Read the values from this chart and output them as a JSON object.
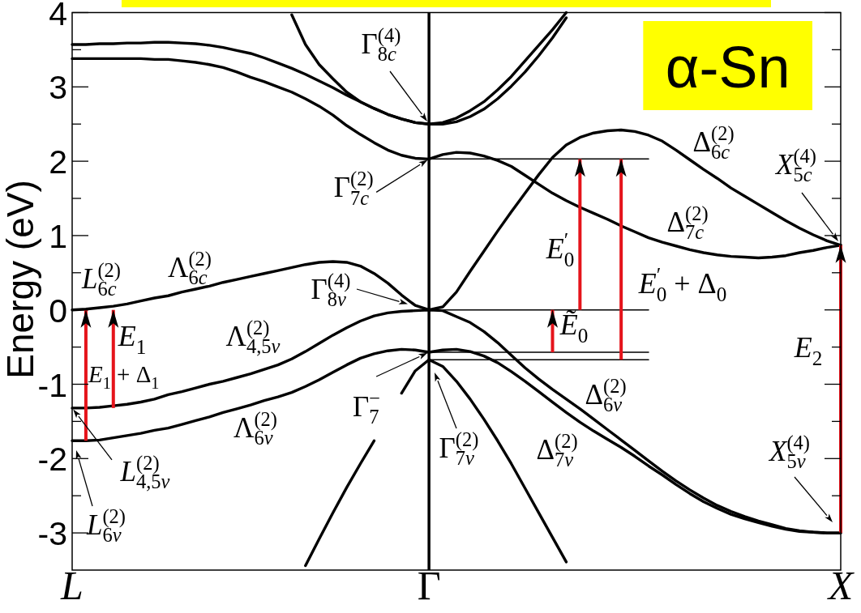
{
  "chart_data": {
    "type": "line",
    "title": "α-Sn",
    "ylabel": "Energy (eV)",
    "categories": [
      "L",
      null,
      null,
      null,
      null,
      null,
      null,
      null,
      null,
      null,
      null,
      null,
      null,
      null,
      null,
      null,
      null,
      null,
      null,
      null,
      null,
      null,
      null,
      null,
      null,
      null,
      "Γ",
      null,
      null,
      null,
      null,
      null,
      null,
      null,
      null,
      null,
      null,
      null,
      null,
      null,
      null,
      null,
      null,
      null,
      null,
      null,
      null,
      null,
      null,
      null,
      null,
      null,
      null,
      null,
      null,
      null,
      "X"
    ],
    "ylim": [
      -3.5,
      4
    ],
    "yticks": [
      -3,
      {
        "value": -2.5,
        "label": null
      },
      -2,
      {
        "value": -1.5,
        "label": null
      },
      -1,
      {
        "value": -0.5,
        "label": null
      },
      0,
      {
        "value": 0.5,
        "label": null
      },
      1,
      {
        "value": 1.5,
        "label": null
      },
      2,
      {
        "value": 2.5,
        "label": null
      },
      3,
      {
        "value": 3.5,
        "label": null
      },
      4
    ],
    "series": [
      {
        "color": "#000000",
        "values": [
          3.57,
          3.57,
          3.58,
          3.58,
          3.59,
          3.59,
          3.6,
          3.6,
          3.59,
          3.58,
          3.56,
          3.53,
          3.49,
          3.45,
          3.39,
          3.32,
          3.25,
          3.17,
          3.08,
          2.99,
          2.89,
          2.8,
          2.71,
          2.63,
          2.57,
          2.52,
          2.5,
          2.5,
          2.53,
          2.6,
          2.7,
          2.84,
          3.01,
          3.2,
          3.42,
          3.66,
          3.93,
          null,
          null,
          null,
          null,
          null,
          null,
          null,
          null,
          null,
          null,
          null,
          null,
          null,
          null,
          null,
          null,
          null,
          null,
          null,
          null
        ]
      },
      {
        "color": "#000000",
        "values": [
          null,
          null,
          null,
          null,
          null,
          null,
          null,
          null,
          null,
          null,
          null,
          null,
          null,
          null,
          null,
          null,
          3.97,
          3.57,
          3.3,
          3.11,
          2.93,
          2.8,
          2.71,
          2.63,
          2.57,
          2.52,
          2.5,
          2.52,
          2.58,
          2.68,
          2.8,
          2.96,
          3.14,
          3.35,
          3.56,
          3.77,
          4.0,
          null,
          null,
          null,
          null,
          null,
          null,
          null,
          null,
          null,
          null,
          null,
          null,
          null,
          null,
          null,
          null,
          null,
          null,
          null,
          null
        ]
      },
      {
        "color": "#000000",
        "values": [
          3.38,
          3.38,
          3.38,
          3.38,
          3.38,
          3.38,
          3.37,
          3.37,
          3.35,
          3.33,
          3.3,
          3.26,
          3.2,
          3.13,
          3.07,
          3.0,
          2.93,
          2.84,
          2.74,
          2.62,
          2.48,
          2.36,
          2.25,
          2.15,
          2.08,
          2.04,
          2.03,
          2.09,
          2.12,
          2.11,
          2.07,
          2.01,
          1.93,
          1.81,
          1.69,
          1.57,
          1.47,
          1.38,
          1.3,
          1.22,
          1.13,
          1.05,
          0.97,
          0.91,
          0.86,
          0.81,
          0.77,
          0.74,
          0.72,
          0.71,
          0.7,
          0.71,
          0.73,
          0.77,
          0.8,
          0.84,
          0.87
        ]
      },
      {
        "color": "#000000",
        "values": [
          0,
          0.01,
          0.03,
          0.05,
          0.08,
          0.12,
          0.16,
          0.19,
          0.24,
          0.28,
          0.32,
          0.37,
          0.41,
          0.45,
          0.49,
          0.53,
          0.57,
          0.61,
          0.64,
          0.65,
          0.64,
          0.59,
          0.49,
          0.36,
          0.2,
          0.06,
          0,
          0.04,
          0.24,
          0.52,
          0.79,
          1.06,
          1.32,
          1.57,
          1.82,
          2.05,
          2.22,
          2.32,
          2.38,
          2.41,
          2.42,
          2.4,
          2.35,
          2.27,
          2.15,
          2.02,
          1.89,
          1.77,
          1.64,
          1.53,
          1.42,
          1.31,
          1.2,
          1.1,
          1.01,
          0.93,
          0.87
        ]
      },
      {
        "color": "#000000",
        "values": [
          -1.32,
          -1.32,
          -1.31,
          -1.29,
          -1.27,
          -1.24,
          -1.2,
          -1.14,
          -1.1,
          -1.05,
          -1.0,
          -0.96,
          -0.91,
          -0.86,
          -0.8,
          -0.74,
          -0.66,
          -0.56,
          -0.45,
          -0.34,
          -0.24,
          -0.15,
          -0.08,
          -0.04,
          -0.02,
          -0.01,
          0,
          -0.01,
          -0.09,
          -0.17,
          -0.29,
          -0.44,
          -0.61,
          -0.78,
          -0.93,
          -1.07,
          -1.2,
          -1.33,
          -1.47,
          -1.61,
          -1.75,
          -1.89,
          -2.03,
          -2.17,
          -2.3,
          -2.42,
          -2.53,
          -2.63,
          -2.71,
          -2.78,
          -2.84,
          -2.89,
          -2.94,
          -2.97,
          -2.99,
          -3.0,
          -3.0
        ]
      },
      {
        "color": "#000000",
        "values": [
          -1.76,
          -1.76,
          -1.75,
          -1.72,
          -1.69,
          -1.66,
          -1.62,
          -1.59,
          -1.54,
          -1.49,
          -1.44,
          -1.38,
          -1.33,
          -1.28,
          -1.22,
          -1.17,
          -1.11,
          -1.03,
          -0.94,
          -0.84,
          -0.74,
          -0.65,
          -0.59,
          -0.55,
          -0.53,
          -0.54,
          -0.57,
          -0.54,
          -0.53,
          -0.56,
          -0.62,
          -0.71,
          -0.83,
          -0.96,
          -1.1,
          -1.24,
          -1.38,
          -1.51,
          -1.63,
          -1.74,
          -1.85,
          -1.97,
          -2.1,
          -2.22,
          -2.35,
          -2.47,
          -2.58,
          -2.67,
          -2.75,
          -2.81,
          -2.86,
          -2.91,
          -2.95,
          -2.98,
          -2.99,
          -3.0,
          -3.0
        ]
      },
      {
        "color": "#000000",
        "values": [
          null,
          null,
          null,
          null,
          null,
          null,
          null,
          null,
          null,
          null,
          null,
          null,
          null,
          null,
          null,
          null,
          null,
          -3.44,
          -3.08,
          -2.73,
          -2.39,
          -2.07,
          -1.76,
          null,
          -1.12,
          -0.82,
          -0.67,
          -0.76,
          -0.96,
          -1.2,
          -1.47,
          -1.76,
          -2.07,
          -2.4,
          -2.73,
          -3.06,
          -3.39,
          null,
          null,
          null,
          null,
          null,
          null,
          null,
          null,
          null,
          null,
          null,
          null,
          null,
          null,
          null,
          null,
          null,
          null,
          null,
          null
        ]
      },
      {
        "color": "#000000",
        "values": [
          null,
          null,
          null,
          null,
          null,
          null,
          null,
          null,
          null,
          null,
          null,
          null,
          null,
          null,
          null,
          null,
          null,
          null,
          null,
          null,
          null,
          null,
          null,
          null,
          null,
          null,
          2.03,
          2.03,
          2.03,
          2.03,
          2.03,
          2.03,
          2.03,
          2.03,
          2.03,
          2.03,
          2.03,
          2.03,
          2.03,
          2.03,
          2.03,
          2.03,
          2.03,
          null,
          null,
          null,
          null,
          null,
          null,
          null,
          null,
          null,
          null,
          null,
          null,
          null,
          null
        ]
      },
      {
        "color": "#000000",
        "values": [
          null,
          null,
          null,
          null,
          null,
          null,
          null,
          null,
          null,
          null,
          null,
          null,
          null,
          null,
          null,
          null,
          null,
          null,
          null,
          null,
          null,
          null,
          null,
          null,
          null,
          null,
          0,
          0,
          0,
          0,
          0,
          0,
          0,
          0,
          0,
          0,
          0,
          0,
          0,
          0,
          0,
          0,
          0,
          null,
          null,
          null,
          null,
          null,
          null,
          null,
          null,
          null,
          null,
          null,
          null,
          null,
          null
        ]
      },
      {
        "color": "#000000",
        "values": [
          null,
          null,
          null,
          null,
          null,
          null,
          null,
          null,
          null,
          null,
          null,
          null,
          null,
          null,
          null,
          null,
          null,
          null,
          null,
          null,
          null,
          null,
          null,
          null,
          null,
          null,
          -0.57,
          -0.57,
          -0.57,
          -0.57,
          -0.57,
          -0.57,
          -0.57,
          -0.57,
          -0.57,
          -0.57,
          -0.57,
          -0.57,
          -0.57,
          -0.57,
          -0.57,
          -0.57,
          -0.57,
          null,
          null,
          null,
          null,
          null,
          null,
          null,
          null,
          null,
          null,
          null,
          null,
          null,
          null
        ]
      },
      {
        "color": "#000000",
        "values": [
          null,
          null,
          null,
          null,
          null,
          null,
          null,
          null,
          null,
          null,
          null,
          null,
          null,
          null,
          null,
          null,
          null,
          null,
          null,
          null,
          null,
          null,
          null,
          null,
          null,
          null,
          -0.67,
          -0.67,
          -0.67,
          -0.67,
          -0.67,
          -0.67,
          -0.67,
          -0.67,
          -0.67,
          -0.67,
          -0.67,
          -0.67,
          -0.67,
          -0.67,
          -0.67,
          -0.67,
          -0.67,
          null,
          null,
          null,
          null,
          null,
          null,
          null,
          null,
          null,
          null,
          null,
          null,
          null,
          null
        ]
      },
      {
        "type": "bar",
        "color": "#e5141b",
        "marker": "triangle",
        "values": [
          null,
          1.76,
          null,
          1.32,
          null,
          null,
          null,
          null,
          null,
          null,
          null,
          null,
          null,
          null,
          null,
          null,
          null,
          null,
          null,
          null,
          null,
          null,
          null,
          null,
          null,
          null,
          null,
          null,
          null,
          null,
          null,
          null,
          null,
          null,
          null,
          0.57,
          null,
          2.03,
          null,
          null,
          2.7,
          null,
          null,
          null,
          null,
          null,
          null,
          null,
          null,
          null,
          null,
          null,
          null,
          null,
          null,
          null,
          3.87
        ],
        "base": [
          null,
          -1.76,
          null,
          -1.32,
          null,
          null,
          null,
          null,
          null,
          null,
          null,
          null,
          null,
          null,
          null,
          null,
          null,
          null,
          null,
          null,
          null,
          null,
          null,
          null,
          null,
          null,
          null,
          null,
          null,
          null,
          null,
          null,
          null,
          null,
          null,
          -0.57,
          null,
          0,
          null,
          null,
          -0.67,
          null,
          null,
          null,
          null,
          null,
          null,
          null,
          null,
          null,
          null,
          null,
          null,
          null,
          null,
          null,
          -3.0
        ]
      }
    ],
    "ref_lines": [
      {
        "axis": "x",
        "value": "Γ"
      }
    ],
    "annotations": [
      "Γ$^{(4)}$$_{8c}$",
      {
        "text": "Γ$^{(2)}$$_{7c}$",
        "x": "Γ",
        "y": 2.03
      },
      "Δ$^{(2)}$$_{6c}$",
      "X$^{(4)}$$_{5c}$",
      "Δ$^{(2)}$$_{7c}$",
      "L$^{(2)}$$_{6c}$",
      "Λ$^{(2)}$$_{6c}$",
      "Γ$^{(4)}$$_{8v}$",
      "E$^{′}$$_{0}$",
      "E$^{′}$$_{0}$ + Δ$_{0}$",
      "E$_{1}$",
      "Λ$^{(2)}$$_{4,5v}$",
      "Ẽ$_{0}$",
      "E$_{1}$ + Δ$_{1}$",
      "E$_{2}$",
      {
        "text": "Γ$^{−}$$_{7}$",
        "x": "Γ",
        "y": -0.57
      },
      "Λ$^{(2)}$$_{6v}$",
      "Δ$^{(2)}$$_{6v}$",
      {
        "text": "L$^{(2)}$$_{4,5v}$",
        "x": "L",
        "y": -1.32
      },
      "Γ$^{(2)}$$_{7v}$",
      "Δ$^{(2)}$$_{7v}$",
      "X$^{(4)}$$_{5v}$",
      "L$^{(2)}$$_{6v}$"
    ]
  }
}
